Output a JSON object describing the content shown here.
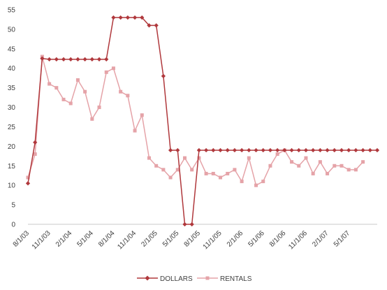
{
  "chart_data": {
    "type": "line",
    "title": "",
    "xlabel": "",
    "ylabel": "",
    "ylim": [
      0,
      55
    ],
    "yticks": [
      0,
      5,
      10,
      15,
      20,
      25,
      30,
      35,
      40,
      45,
      50,
      55
    ],
    "x_tick_labels": [
      "8/1/03",
      "11/1/03",
      "2/1/04",
      "5/1/04",
      "8/1/04",
      "11/1/04",
      "2/1/05",
      "5/1/05",
      "8/1/05",
      "11/1/05",
      "2/1/06",
      "5/1/06",
      "8/1/06",
      "11/1/06",
      "2/1/07",
      "5/1/07"
    ],
    "x_start": "8/1/03",
    "grid": false,
    "legend_position": "bottom",
    "series": [
      {
        "name": "DOLLARS",
        "color": "#b0383c",
        "marker": "diamond",
        "values": [
          10.5,
          21,
          42.5,
          42.3,
          42.3,
          42.3,
          42.3,
          42.3,
          42.3,
          42.3,
          42.3,
          42.3,
          53,
          53,
          53,
          53,
          53,
          51,
          51,
          38,
          19,
          19,
          0,
          0,
          19,
          19,
          19,
          19,
          19,
          19,
          19,
          19,
          19,
          19,
          19,
          19,
          19,
          19,
          19,
          19,
          19,
          19,
          19,
          19,
          19,
          19,
          19,
          19,
          19,
          19
        ]
      },
      {
        "name": "RENTALS",
        "color": "#e5a3a8",
        "marker": "square",
        "values": [
          12,
          18,
          43,
          36,
          35,
          32,
          31,
          37,
          34,
          27,
          30,
          39,
          40,
          34,
          33,
          24,
          28,
          17,
          15,
          14,
          12,
          14,
          17,
          14,
          17,
          13,
          13,
          12,
          13,
          14,
          11,
          17,
          10,
          11,
          15,
          18,
          19,
          16,
          15,
          17,
          13,
          16,
          13,
          15,
          15,
          14,
          14,
          16
        ]
      }
    ]
  }
}
